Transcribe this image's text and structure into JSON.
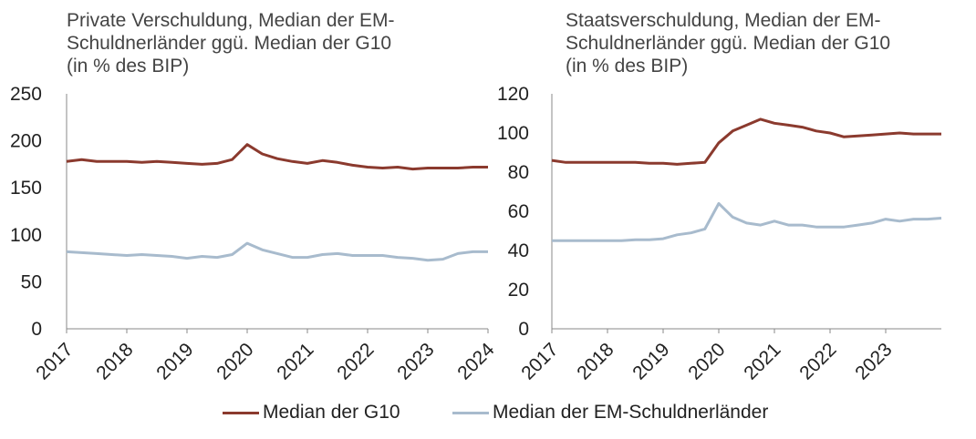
{
  "colors": {
    "g10": "#8B3A2E",
    "em": "#A8BBCD"
  },
  "chart_data": [
    {
      "type": "line",
      "title": "Private Verschuldung, Median der EM-\nSchuldnerländer ggü. Median der G10\n(in % des BIP)",
      "x_ticks": [
        "2017",
        "2018",
        "2019",
        "2020",
        "2021",
        "2022",
        "2023",
        "2024"
      ],
      "xlim": [
        2017,
        2024
      ],
      "ylim": [
        0,
        250
      ],
      "y_ticks": [
        "0",
        "50",
        "100",
        "150",
        "200",
        "250"
      ],
      "series": [
        {
          "name": "Median der G10",
          "x": [
            2017.0,
            2017.25,
            2017.5,
            2017.75,
            2018.0,
            2018.25,
            2018.5,
            2018.75,
            2019.0,
            2019.25,
            2019.5,
            2019.75,
            2020.0,
            2020.25,
            2020.5,
            2020.75,
            2021.0,
            2021.25,
            2021.5,
            2021.75,
            2022.0,
            2022.25,
            2022.5,
            2022.75,
            2023.0,
            2023.25,
            2023.5,
            2023.75,
            2024.0
          ],
          "values": [
            178,
            180,
            178,
            178,
            178,
            177,
            178,
            177,
            176,
            175,
            176,
            180,
            196,
            186,
            181,
            178,
            176,
            179,
            177,
            174,
            172,
            171,
            172,
            170,
            171,
            171,
            171,
            172,
            172
          ]
        },
        {
          "name": "Median der EM-Schuldnerländer",
          "x": [
            2017.0,
            2017.25,
            2017.5,
            2017.75,
            2018.0,
            2018.25,
            2018.5,
            2018.75,
            2019.0,
            2019.25,
            2019.5,
            2019.75,
            2020.0,
            2020.25,
            2020.5,
            2020.75,
            2021.0,
            2021.25,
            2021.5,
            2021.75,
            2022.0,
            2022.25,
            2022.5,
            2022.75,
            2023.0,
            2023.25,
            2023.5,
            2023.75,
            2024.0
          ],
          "values": [
            82,
            81,
            80,
            79,
            78,
            79,
            78,
            77,
            75,
            77,
            76,
            79,
            91,
            84,
            80,
            76,
            76,
            79,
            80,
            78,
            78,
            78,
            76,
            75,
            73,
            74,
            80,
            82,
            82
          ]
        }
      ]
    },
    {
      "type": "line",
      "title": "Staatsverschuldung, Median der EM-\nSchuldnerländer ggü. Median der G10\n(in % des BIP)",
      "x_ticks": [
        "2017",
        "2018",
        "2019",
        "2020",
        "2021",
        "2022",
        "2023"
      ],
      "xlim": [
        2017,
        2024
      ],
      "ylim": [
        0,
        120
      ],
      "y_ticks": [
        "0",
        "20",
        "40",
        "60",
        "80",
        "100",
        "120"
      ],
      "series": [
        {
          "name": "Median der G10",
          "x": [
            2017.0,
            2017.25,
            2017.5,
            2017.75,
            2018.0,
            2018.25,
            2018.5,
            2018.75,
            2019.0,
            2019.25,
            2019.5,
            2019.75,
            2020.0,
            2020.25,
            2020.5,
            2020.75,
            2021.0,
            2021.25,
            2021.5,
            2021.75,
            2022.0,
            2022.25,
            2022.5,
            2022.75,
            2023.0,
            2023.25,
            2023.5,
            2023.75,
            2024.0
          ],
          "values": [
            86,
            85,
            85,
            85,
            85,
            85,
            85,
            84.5,
            84.5,
            84,
            84.5,
            85,
            95,
            101,
            104,
            107,
            105,
            104,
            103,
            101,
            100,
            98,
            98.5,
            99,
            99.5,
            100,
            99.5,
            99.5,
            99.5
          ]
        },
        {
          "name": "Median der EM-Schuldnerländer",
          "x": [
            2017.0,
            2017.25,
            2017.5,
            2017.75,
            2018.0,
            2018.25,
            2018.5,
            2018.75,
            2019.0,
            2019.25,
            2019.5,
            2019.75,
            2020.0,
            2020.25,
            2020.5,
            2020.75,
            2021.0,
            2021.25,
            2021.5,
            2021.75,
            2022.0,
            2022.25,
            2022.5,
            2022.75,
            2023.0,
            2023.25,
            2023.5,
            2023.75,
            2024.0
          ],
          "values": [
            45,
            45,
            45,
            45,
            45,
            45,
            45.5,
            45.5,
            46,
            48,
            49,
            51,
            64,
            57,
            54,
            53,
            55,
            53,
            53,
            52,
            52,
            52,
            53,
            54,
            56,
            55,
            56,
            56,
            56.5
          ]
        }
      ]
    }
  ],
  "legend": [
    {
      "label": "Median der G10",
      "color_key": "g10"
    },
    {
      "label": "Median der EM-Schuldnerländer",
      "color_key": "em"
    }
  ]
}
